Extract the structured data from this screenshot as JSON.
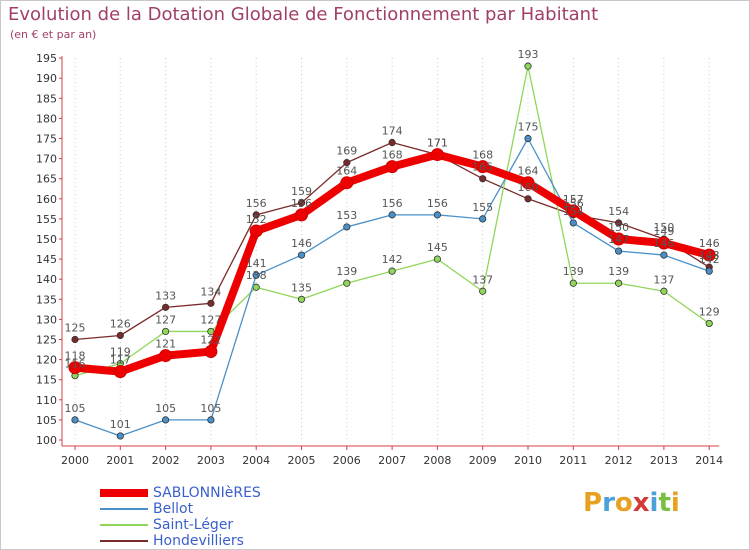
{
  "title": "Evolution de la Dotation Globale de Fonctionnement par Habitant",
  "subtitle": "(en € et par an)",
  "logo": {
    "text": "Proxiti",
    "colors": [
      "#e8a020",
      "#4aa0d8",
      "#e8a020",
      "#d23a3a",
      "#4aa0d8",
      "#78c040",
      "#e8a020"
    ]
  },
  "chart_data": {
    "type": "line",
    "title": "Evolution de la Dotation Globale de Fonctionnement par Habitant",
    "subtitle": "(en € et par an)",
    "x": [
      2000,
      2001,
      2002,
      2003,
      2004,
      2005,
      2006,
      2007,
      2008,
      2009,
      2010,
      2011,
      2012,
      2013,
      2014
    ],
    "ylim": [
      100,
      195
    ],
    "ytick_step": 5,
    "grid": "vertical dotted",
    "legend_position": "bottom-left",
    "series": [
      {
        "name": "SABLONNIèRES",
        "color": "#ee0000",
        "values": [
          118,
          117,
          121,
          122,
          152,
          156,
          164,
          168,
          171,
          168,
          164,
          157,
          150,
          149,
          146
        ]
      },
      {
        "name": "Bellot",
        "color": "#4a90c8",
        "values": [
          105,
          101,
          105,
          105,
          141,
          146,
          153,
          156,
          156,
          155,
          175,
          154,
          147,
          146,
          142
        ]
      },
      {
        "name": "Saint-Léger",
        "color": "#8fd65a",
        "values": [
          116,
          119,
          127,
          127,
          138,
          135,
          139,
          142,
          145,
          137,
          193,
          139,
          139,
          137,
          129
        ]
      },
      {
        "name": "Hondevilliers",
        "color": "#7a2a2a",
        "values": [
          125,
          126,
          133,
          134,
          156,
          159,
          169,
          174,
          171,
          165,
          160,
          156,
          154,
          150,
          143
        ]
      }
    ]
  }
}
